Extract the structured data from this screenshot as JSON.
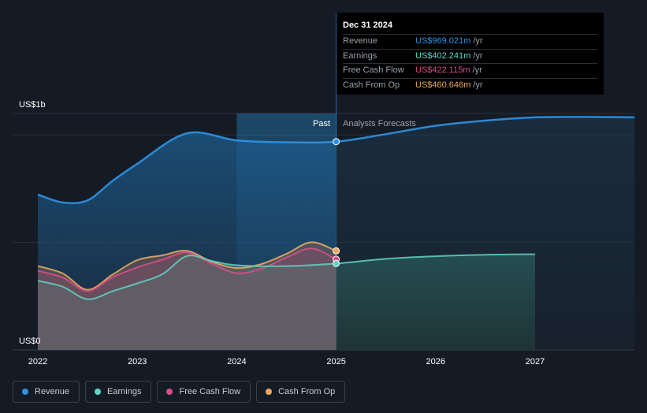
{
  "chart_data": {
    "type": "area",
    "y_axis_labels": {
      "top": "US$1b",
      "bottom": "US$0"
    },
    "ylim": [
      0,
      1100
    ],
    "xlim": [
      2021.8,
      2028.0
    ],
    "x_ticks": [
      "2022",
      "2023",
      "2024",
      "2025",
      "2026",
      "2027"
    ],
    "x_tick_values": [
      2022,
      2023,
      2024,
      2025,
      2026,
      2027
    ],
    "past_label": "Past",
    "forecast_label": "Analysts Forecasts",
    "past_start": 2024.0,
    "divider_x": 2025.0,
    "series": [
      {
        "key": "revenue",
        "name": "Revenue",
        "color": "#2e93e6",
        "points": [
          [
            2022.0,
            723
          ],
          [
            2022.25,
            686
          ],
          [
            2022.5,
            696
          ],
          [
            2022.75,
            786
          ],
          [
            2023.0,
            866
          ],
          [
            2023.5,
            1008
          ],
          [
            2024.0,
            975
          ],
          [
            2024.5,
            966
          ],
          [
            2025.0,
            969
          ],
          [
            2025.5,
            1004
          ],
          [
            2026.0,
            1043
          ],
          [
            2026.5,
            1067
          ],
          [
            2027.0,
            1082
          ],
          [
            2027.5,
            1084
          ],
          [
            2028.0,
            1082
          ]
        ]
      },
      {
        "key": "earnings",
        "name": "Earnings",
        "color": "#5fd4c5",
        "points": [
          [
            2022.0,
            322
          ],
          [
            2022.25,
            294
          ],
          [
            2022.5,
            236
          ],
          [
            2022.75,
            273
          ],
          [
            2023.0,
            310
          ],
          [
            2023.25,
            352
          ],
          [
            2023.5,
            437
          ],
          [
            2023.75,
            414
          ],
          [
            2024.0,
            394
          ],
          [
            2024.5,
            390
          ],
          [
            2025.0,
            402
          ],
          [
            2025.5,
            424
          ],
          [
            2026.0,
            436
          ],
          [
            2026.5,
            443
          ],
          [
            2027.0,
            445
          ]
        ]
      },
      {
        "key": "free_cash_flow",
        "name": "Free Cash Flow",
        "color": "#d64f8c",
        "points": [
          [
            2022.0,
            368
          ],
          [
            2022.25,
            337
          ],
          [
            2022.5,
            274
          ],
          [
            2022.75,
            338
          ],
          [
            2023.0,
            384
          ],
          [
            2023.25,
            420
          ],
          [
            2023.5,
            453
          ],
          [
            2023.75,
            401
          ],
          [
            2024.0,
            357
          ],
          [
            2024.25,
            378
          ],
          [
            2024.5,
            430
          ],
          [
            2024.75,
            472
          ],
          [
            2025.0,
            422
          ]
        ]
      },
      {
        "key": "cash_from_op",
        "name": "Cash From Op",
        "color": "#e9a85e",
        "points": [
          [
            2022.0,
            390
          ],
          [
            2022.25,
            356
          ],
          [
            2022.5,
            280
          ],
          [
            2022.75,
            350
          ],
          [
            2023.0,
            418
          ],
          [
            2023.25,
            440
          ],
          [
            2023.5,
            461
          ],
          [
            2023.75,
            410
          ],
          [
            2024.0,
            381
          ],
          [
            2024.25,
            400
          ],
          [
            2024.5,
            447
          ],
          [
            2024.75,
            501
          ],
          [
            2025.0,
            461
          ]
        ]
      }
    ]
  },
  "tooltip": {
    "date": "Dec 31 2024",
    "rows": [
      {
        "label": "Revenue",
        "value": "US$969.021m",
        "unit": "/yr",
        "color": "#2e93e6"
      },
      {
        "label": "Earnings",
        "value": "US$402.241m",
        "unit": "/yr",
        "color": "#5fd4c5"
      },
      {
        "label": "Free Cash Flow",
        "value": "US$422.115m",
        "unit": "/yr",
        "color": "#d64f8c"
      },
      {
        "label": "Cash From Op",
        "value": "US$460.646m",
        "unit": "/yr",
        "color": "#e9a85e"
      }
    ]
  },
  "legend": [
    {
      "label": "Revenue",
      "color": "#2e93e6"
    },
    {
      "label": "Earnings",
      "color": "#5fd4c5"
    },
    {
      "label": "Free Cash Flow",
      "color": "#d64f8c"
    },
    {
      "label": "Cash From Op",
      "color": "#e9a85e"
    }
  ]
}
